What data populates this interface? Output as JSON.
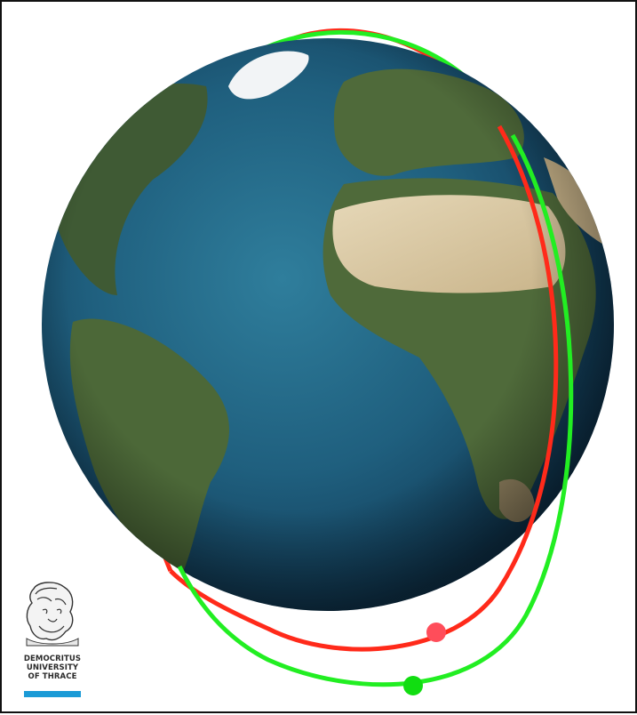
{
  "scene": {
    "colors": {
      "ocean_deep": "#0f3550",
      "ocean": "#1f5f7e",
      "ocean_shallow": "#3b8aa3",
      "land_green": "#4f6a3a",
      "land_desert": "#d8c7a4",
      "ice": "#f2f4f6",
      "orbit_red": "#ff2a1a",
      "orbit_green": "#22ee22",
      "satellite_red": "#ff4d5a",
      "satellite_green": "#11dd11"
    },
    "orbits": [
      {
        "id": "red-orbit",
        "color": "#ff2a1a"
      },
      {
        "id": "green-orbit",
        "color": "#22ee22"
      }
    ]
  },
  "logo": {
    "lines": [
      "DEMOCRITUS",
      "UNIVERSITY",
      "OF THRACE"
    ],
    "bar_color": "#1a9ad6",
    "icon": "philosopher-bust-icon"
  }
}
